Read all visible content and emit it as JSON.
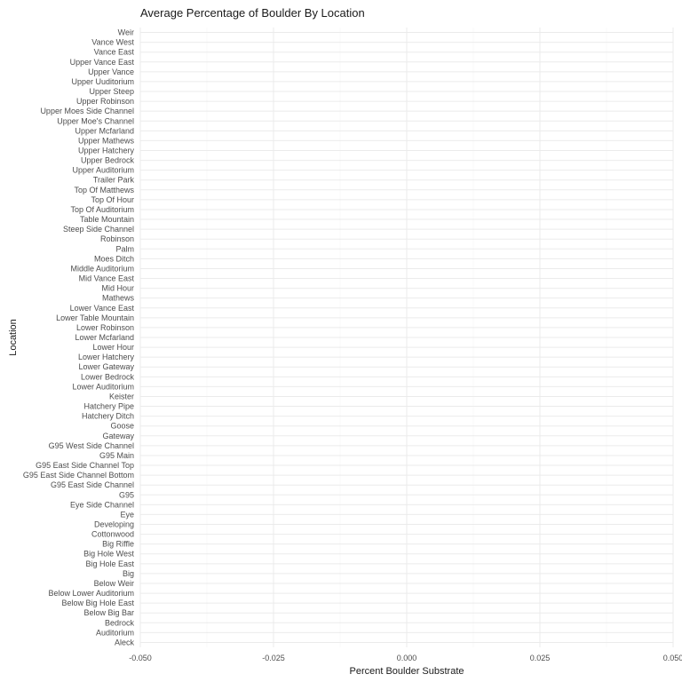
{
  "chart_data": {
    "type": "bar",
    "title": "Average Percentage of Boulder By Location",
    "xlabel": "Percent Boulder Substrate",
    "ylabel": "Location",
    "orientation": "horizontal",
    "xlim": [
      -0.05,
      0.05
    ],
    "x_ticks": [
      -0.05,
      -0.025,
      0.0,
      0.025,
      0.05
    ],
    "x_tick_labels": [
      "-0.050",
      "-0.025",
      "0.000",
      "0.025",
      "0.050"
    ],
    "grid": true,
    "categories": [
      "Aleck",
      "Auditorium",
      "Bedrock",
      "Below Big Bar",
      "Below Big Hole East",
      "Below Lower Auditorium",
      "Below Weir",
      "Big",
      "Big Hole East",
      "Big Hole West",
      "Big Riffle",
      "Cottonwood",
      "Developing",
      "Eye",
      "Eye Side Channel",
      "G95",
      "G95 East Side Channel",
      "G95 East Side Channel Bottom",
      "G95 East Side Channel Top",
      "G95 Main",
      "G95 West Side Channel",
      "Gateway",
      "Goose",
      "Hatchery Ditch",
      "Hatchery Pipe",
      "Keister",
      "Lower Auditorium",
      "Lower Bedrock",
      "Lower Gateway",
      "Lower Hatchery",
      "Lower Hour",
      "Lower Mcfarland",
      "Lower Robinson",
      "Lower Table Mountain",
      "Lower Vance East",
      "Mathews",
      "Mid Hour",
      "Mid Vance East",
      "Middle Auditorium",
      "Moes Ditch",
      "Palm",
      "Robinson",
      "Steep Side Channel",
      "Table Mountain",
      "Top Of Auditorium",
      "Top Of Hour",
      "Top Of Matthews",
      "Trailer Park",
      "Upper Auditorium",
      "Upper Bedrock",
      "Upper Hatchery",
      "Upper Mathews",
      "Upper Mcfarland",
      "Upper Moe's Channel",
      "Upper Moes Side Channel",
      "Upper Robinson",
      "Upper Steep",
      "Upper Uuditorium",
      "Upper Vance",
      "Upper Vance East",
      "Vance East",
      "Vance West",
      "Weir"
    ],
    "values": [
      0,
      0,
      0,
      0,
      0,
      0,
      0,
      0,
      0,
      0,
      0,
      0,
      0,
      0,
      0,
      0,
      0,
      0,
      0,
      0,
      0,
      0,
      0,
      0,
      0,
      0,
      0,
      0,
      0,
      0,
      0,
      0,
      0,
      0,
      0,
      0,
      0,
      0,
      0,
      0,
      0,
      0,
      0,
      0,
      0,
      0,
      0,
      0,
      0,
      0,
      0,
      0,
      0,
      0,
      0,
      0,
      0,
      0,
      0,
      0,
      0,
      0,
      0
    ]
  }
}
